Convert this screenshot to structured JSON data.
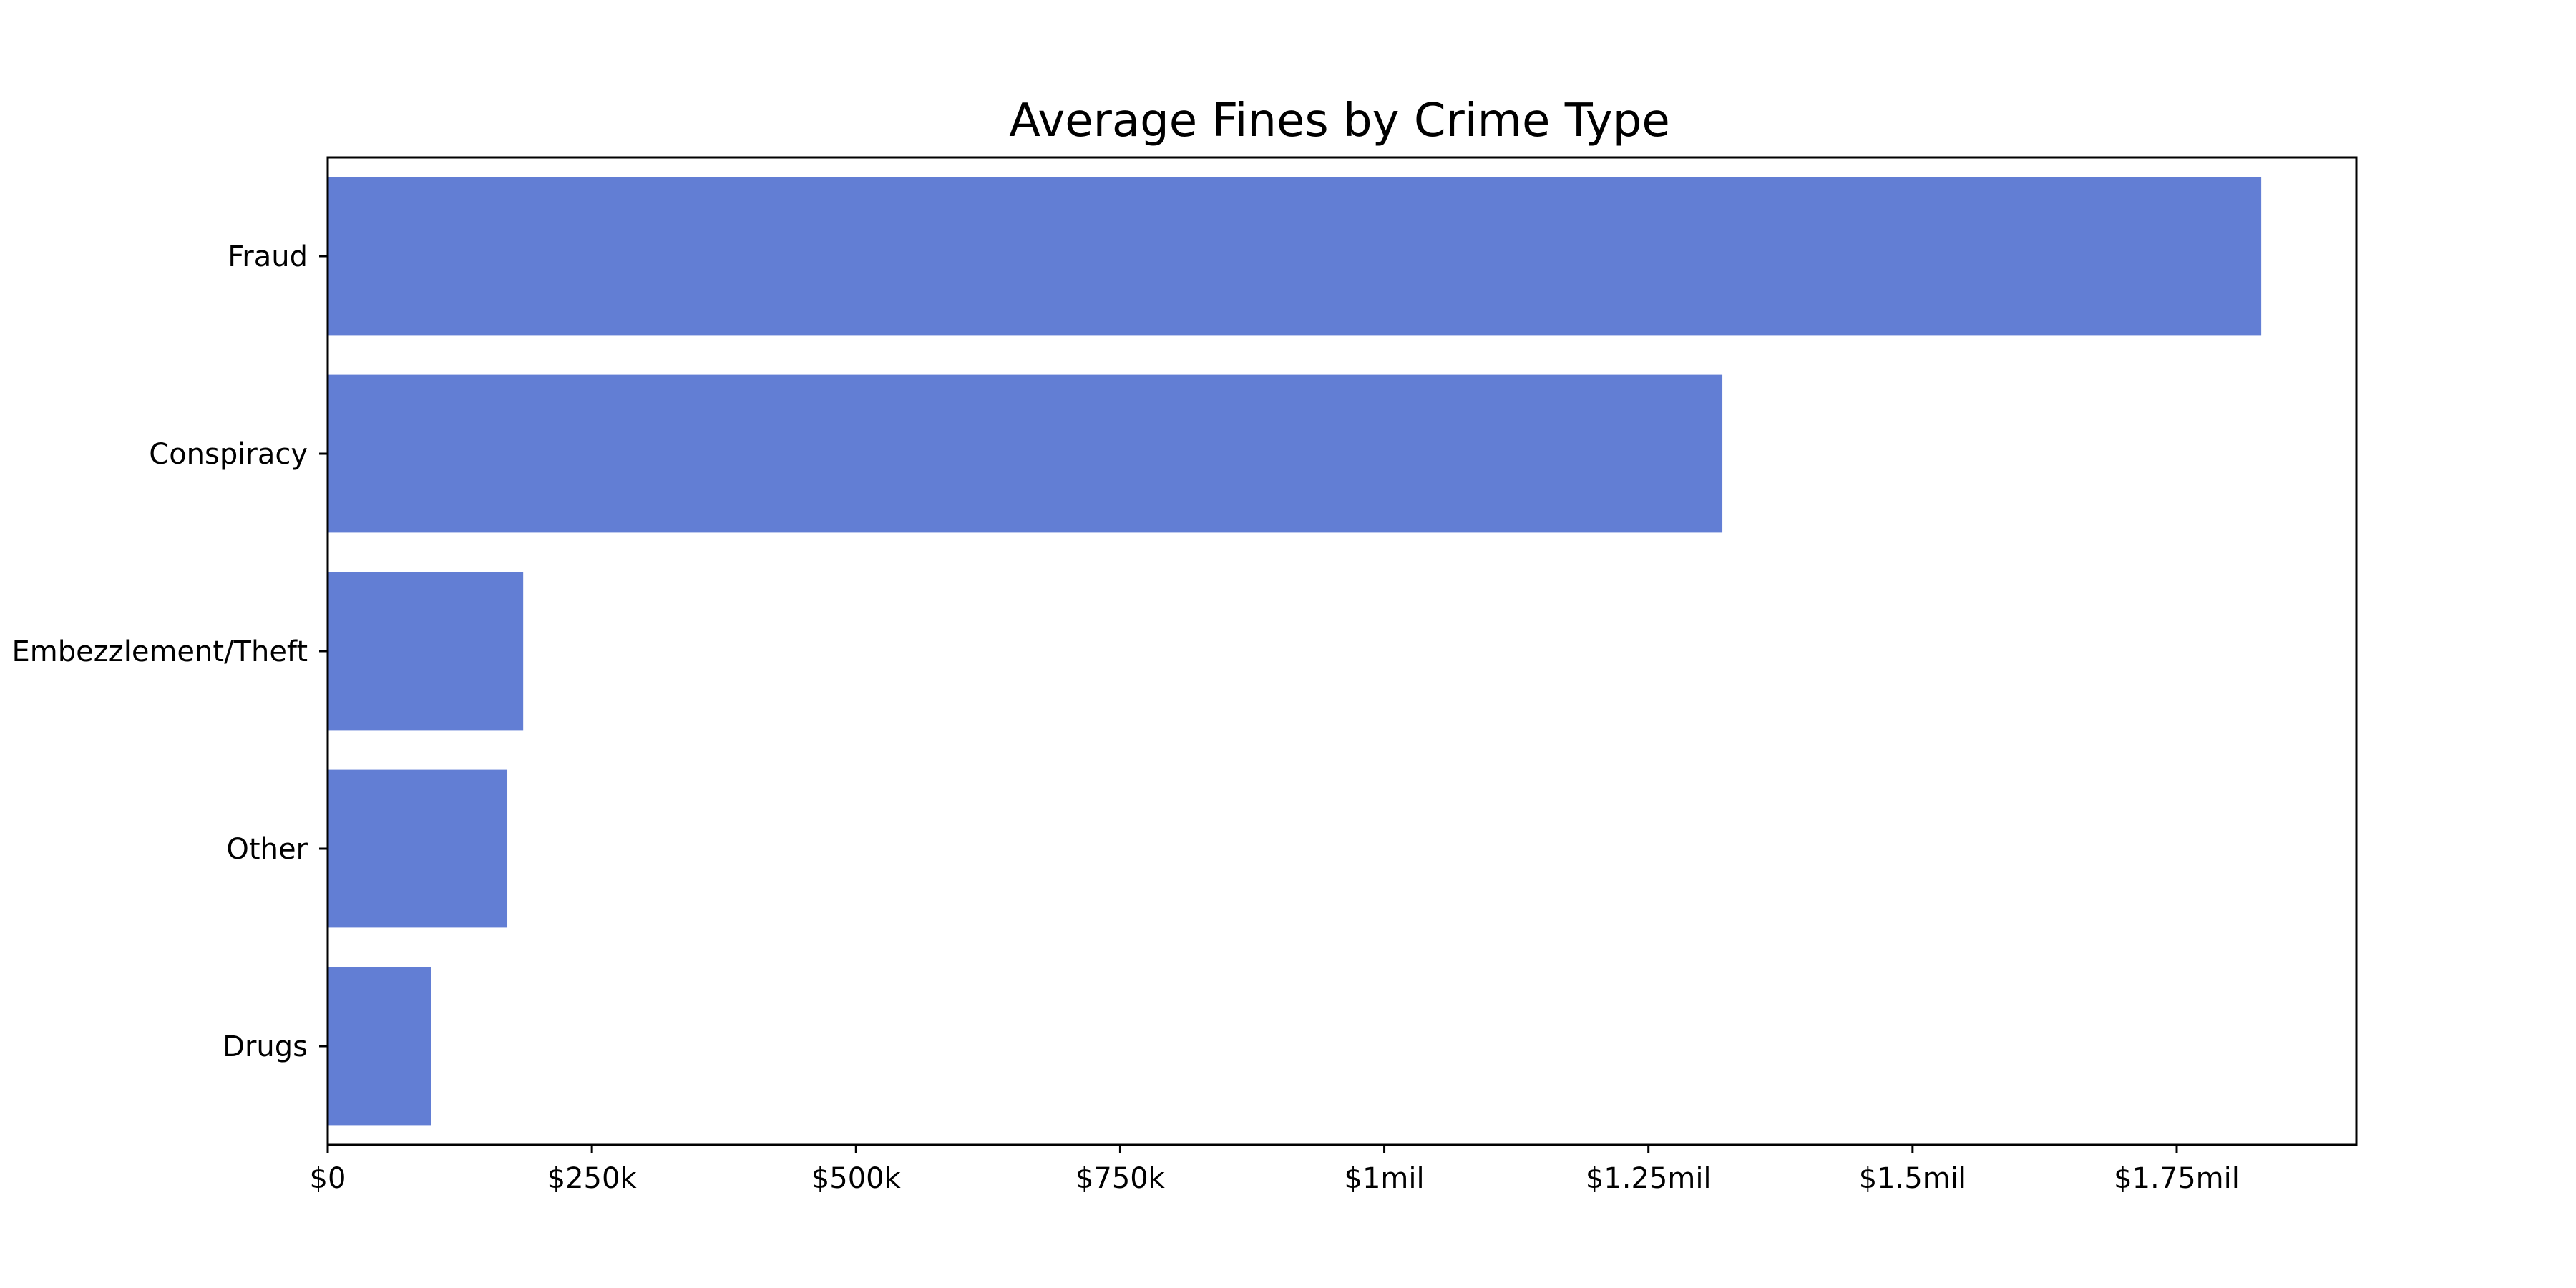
{
  "chart_data": {
    "type": "bar",
    "orientation": "horizontal",
    "title": "Average Fines by Crime Type",
    "xlabel": "",
    "ylabel": "",
    "categories": [
      "Fraud",
      "Conspiracy",
      "Embezzlement/Theft",
      "Other",
      "Drugs"
    ],
    "values": [
      1830000,
      1320000,
      185000,
      170000,
      98000
    ],
    "xlim": [
      0,
      1920000
    ],
    "x_ticks": [
      0,
      250000,
      500000,
      750000,
      1000000,
      1250000,
      1500000,
      1750000
    ],
    "x_tick_labels": [
      "$0",
      "$250k",
      "$500k",
      "$750k",
      "$1mil",
      "$1.25mil",
      "$1.5mil",
      "$1.75mil"
    ],
    "bar_color": "#627ed4",
    "grid": false,
    "legend": "none"
  }
}
